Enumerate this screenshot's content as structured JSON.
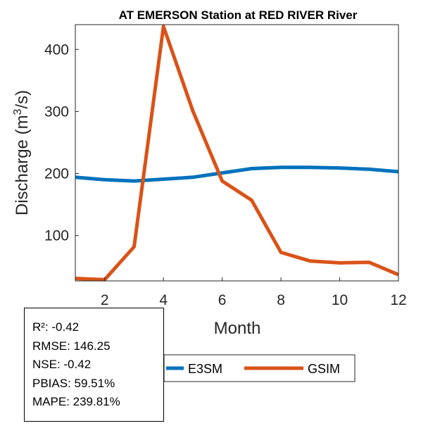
{
  "chart_data": {
    "type": "line",
    "title": "AT EMERSON  Station at  RED RIVER  River",
    "xlabel": "Month",
    "ylabel_main": "Discharge (m",
    "ylabel_sup": "3",
    "ylabel_tail": "/s)",
    "xlim": [
      1,
      12
    ],
    "ylim": [
      27,
      440
    ],
    "xticks": [
      2,
      4,
      6,
      8,
      10,
      12
    ],
    "yticks": [
      100,
      200,
      300,
      400
    ],
    "grid": false,
    "legend_position": "bottom-center",
    "x": [
      1,
      2,
      3,
      4,
      5,
      6,
      7,
      8,
      9,
      10,
      11,
      12
    ],
    "series": [
      {
        "name": "E3SM",
        "color": "#0072BD",
        "values": [
          194,
          190,
          188,
          191,
          194,
          201,
          208,
          210,
          210,
          209,
          207,
          203
        ]
      },
      {
        "name": "GSIM",
        "color": "#D95319",
        "values": [
          31,
          29,
          82,
          437,
          301,
          188,
          157,
          73,
          59,
          56,
          57,
          37
        ]
      }
    ]
  },
  "stats": {
    "r2": "R²: -0.42",
    "rmse": "RMSE: 146.25",
    "nse": "NSE: -0.42",
    "pbias": "PBIAS: 59.51%",
    "mape": "MAPE: 239.81%"
  }
}
